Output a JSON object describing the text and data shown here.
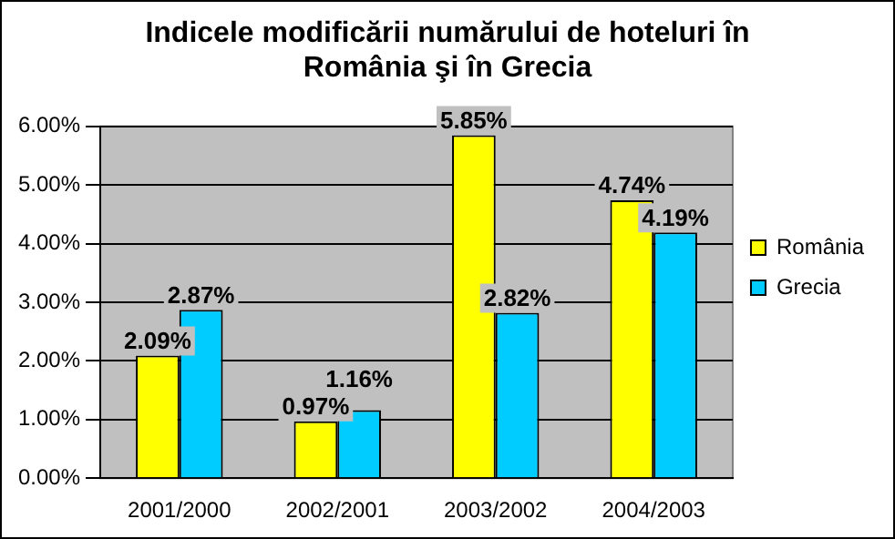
{
  "chart_data": {
    "type": "bar",
    "title": [
      "Indicele modificării numărului de hoteluri în",
      "România şi în Grecia"
    ],
    "categories": [
      "2001/2000",
      "2002/2001",
      "2003/2002",
      "2004/2003"
    ],
    "series": [
      {
        "name": "România",
        "color": "#ffff00",
        "values": [
          2.09,
          0.97,
          5.85,
          4.74
        ],
        "value_labels": [
          "2.09%",
          "0.97%",
          "5.85%",
          "4.74%"
        ]
      },
      {
        "name": "Grecia",
        "color": "#00ccff",
        "values": [
          2.87,
          1.16,
          2.82,
          4.19
        ],
        "value_labels": [
          "2.87%",
          "1.16%",
          "2.82%",
          "4.19%"
        ]
      }
    ],
    "ylim": [
      0,
      6
    ],
    "yticks": [
      {
        "value": 0,
        "label": "0.00%"
      },
      {
        "value": 1,
        "label": "1.00%"
      },
      {
        "value": 2,
        "label": "2.00%"
      },
      {
        "value": 3,
        "label": "3.00%"
      },
      {
        "value": 4,
        "label": "4.00%"
      },
      {
        "value": 5,
        "label": "5.00%"
      },
      {
        "value": 6,
        "label": "6.00%"
      }
    ],
    "grid": "y",
    "legend": "right"
  }
}
